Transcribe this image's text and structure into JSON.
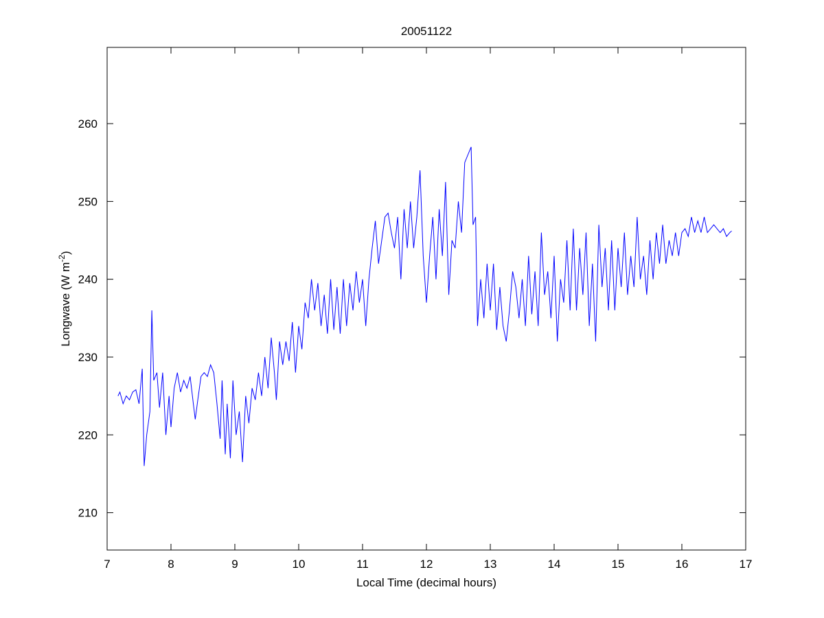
{
  "chart_data": {
    "type": "line",
    "title": "20051122",
    "x_label": "Local Time (decimal hours)",
    "y_label": {
      "text": "Longwave (W m",
      "superscript": "-2",
      "closing": ")"
    },
    "xlim": [
      7,
      17
    ],
    "xticks": [
      7,
      8,
      9,
      10,
      11,
      12,
      13,
      14,
      15,
      16,
      17
    ],
    "ylim": [
      205.2,
      269.8
    ],
    "yticks": [
      210,
      220,
      230,
      240,
      250,
      260
    ],
    "grid": false,
    "series": [
      {
        "color": "#0000ff",
        "x": [
          7.17,
          7.2,
          7.25,
          7.3,
          7.35,
          7.4,
          7.45,
          7.5,
          7.55,
          7.58,
          7.62,
          7.67,
          7.7,
          7.73,
          7.78,
          7.82,
          7.87,
          7.92,
          7.97,
          8.0,
          8.05,
          8.1,
          8.15,
          8.2,
          8.25,
          8.3,
          8.35,
          8.38,
          8.42,
          8.47,
          8.52,
          8.57,
          8.62,
          8.67,
          8.72,
          8.77,
          8.8,
          8.85,
          8.88,
          8.93,
          8.97,
          9.02,
          9.07,
          9.12,
          9.17,
          9.22,
          9.27,
          9.32,
          9.37,
          9.42,
          9.47,
          9.52,
          9.57,
          9.62,
          9.65,
          9.7,
          9.75,
          9.8,
          9.85,
          9.9,
          9.95,
          10.0,
          10.05,
          10.1,
          10.15,
          10.2,
          10.25,
          10.3,
          10.35,
          10.4,
          10.45,
          10.5,
          10.55,
          10.6,
          10.65,
          10.7,
          10.75,
          10.8,
          10.85,
          10.9,
          10.95,
          11.0,
          11.05,
          11.1,
          11.15,
          11.2,
          11.25,
          11.3,
          11.35,
          11.4,
          11.45,
          11.5,
          11.55,
          11.6,
          11.65,
          11.7,
          11.75,
          11.8,
          11.85,
          11.9,
          11.95,
          12.0,
          12.05,
          12.1,
          12.15,
          12.2,
          12.25,
          12.3,
          12.35,
          12.4,
          12.45,
          12.5,
          12.55,
          12.6,
          12.65,
          12.7,
          12.73,
          12.77,
          12.8,
          12.85,
          12.9,
          12.95,
          13.0,
          13.05,
          13.1,
          13.15,
          13.2,
          13.25,
          13.3,
          13.35,
          13.4,
          13.45,
          13.5,
          13.55,
          13.6,
          13.65,
          13.7,
          13.75,
          13.8,
          13.85,
          13.9,
          13.95,
          14.0,
          14.05,
          14.1,
          14.15,
          14.2,
          14.25,
          14.3,
          14.35,
          14.4,
          14.45,
          14.5,
          14.55,
          14.6,
          14.65,
          14.7,
          14.75,
          14.8,
          14.85,
          14.9,
          14.95,
          15.0,
          15.05,
          15.1,
          15.15,
          15.2,
          15.25,
          15.3,
          15.35,
          15.4,
          15.45,
          15.5,
          15.55,
          15.6,
          15.65,
          15.7,
          15.75,
          15.8,
          15.85,
          15.9,
          15.95,
          16.0,
          16.05,
          16.1,
          16.15,
          16.2,
          16.25,
          16.3,
          16.35,
          16.4,
          16.45,
          16.5,
          16.55,
          16.6,
          16.65,
          16.7,
          16.75,
          16.78
        ],
        "values": [
          225,
          225.5,
          224,
          225,
          224.5,
          225.5,
          225.8,
          224,
          228.5,
          216,
          220,
          223,
          236,
          227,
          228,
          223.5,
          228,
          220,
          225,
          221,
          226,
          228,
          225.5,
          227,
          226,
          227.5,
          224,
          222,
          224.5,
          227.5,
          228,
          227.5,
          229,
          228,
          224,
          219.5,
          227,
          217.5,
          224,
          217,
          227,
          220,
          223,
          216.5,
          225,
          221.5,
          226,
          224.5,
          228,
          225,
          230,
          226,
          232.5,
          228,
          224.5,
          232,
          229,
          232,
          229.5,
          234.5,
          228,
          234,
          231,
          237,
          235,
          240,
          236,
          239.5,
          234,
          238,
          233,
          240,
          233.5,
          239,
          233,
          240,
          234,
          239.5,
          236,
          241,
          237,
          240,
          234,
          240,
          244,
          247.5,
          242,
          245,
          248,
          248.5,
          246,
          244,
          248,
          240,
          249,
          244,
          250,
          244,
          248,
          254,
          243,
          237,
          243,
          248,
          240,
          249,
          243,
          252.5,
          238,
          245,
          244,
          250,
          246,
          255,
          256,
          257,
          247,
          248,
          234,
          240,
          235,
          242,
          236,
          242,
          233.5,
          239,
          234,
          232,
          236,
          241,
          239,
          235,
          240,
          234,
          243,
          235.5,
          241,
          234,
          246,
          238,
          241,
          235,
          243,
          232,
          240,
          237,
          245,
          236,
          246.5,
          236,
          244,
          238,
          246,
          234,
          242,
          232,
          247,
          239,
          244,
          236,
          245,
          236,
          244,
          239,
          246,
          238,
          243,
          239,
          248,
          240,
          243,
          238,
          245,
          240,
          246,
          242,
          247,
          242,
          245,
          243,
          246,
          243,
          246,
          246.5,
          245.5,
          248,
          246,
          247.5,
          246,
          248,
          246,
          246.5,
          247,
          246.5,
          246,
          246.5,
          245.5,
          246,
          246.2
        ]
      }
    ]
  }
}
